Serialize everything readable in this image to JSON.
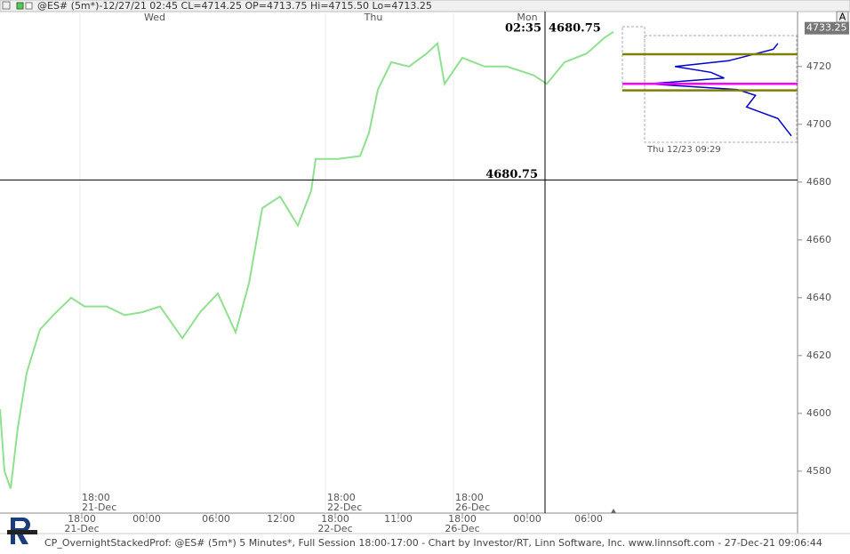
{
  "chart_data": {
    "type": "line",
    "header": "@ES# (5m*)-12/27/21 02:45 CL=4714.25 OP=4713.75 Hi=4715.50 Lo=4713.25",
    "footer": "CP_OvernightStackedProf: @ES# (5m*) 5 Minutes*, Full Session 18:00-17:00 - Chart by Investor/RT, Linn Software, Inc. www.linnsoft.com - 27-Dec-21 09:06:44",
    "corner_button": "A",
    "x": [
      0,
      5,
      12,
      20,
      30,
      45,
      60,
      80,
      95,
      120,
      140,
      160,
      180,
      205,
      225,
      245,
      265,
      280,
      295,
      315,
      335,
      350,
      355,
      380,
      405,
      415,
      425,
      440,
      460,
      480,
      492,
      500,
      520,
      545,
      570,
      600,
      615,
      635,
      660,
      680,
      690
    ],
    "series": [
      {
        "color": "#8fe08f",
        "values": [
          4601.5,
          4580,
          4574,
          4595,
          4614,
          4629,
          4634,
          4640,
          4637,
          4637,
          4634,
          4635,
          4637,
          4626,
          4635,
          4641.5,
          4628,
          4645,
          4671,
          4675,
          4665,
          4677,
          4688,
          4688,
          4689,
          4697,
          4712,
          4721.5,
          4720,
          4724.5,
          4728,
          4714,
          4723,
          4720,
          4720,
          4717,
          4714,
          4721.5,
          4724.5,
          4730,
          4732
        ]
      }
    ],
    "xlim": [
      0,
      897
    ],
    "ylim": [
      4565.5,
      4739
    ],
    "yticks": [
      4580,
      4600,
      4620,
      4640,
      4660,
      4680,
      4700,
      4720
    ],
    "xticks": [
      {
        "value": 92,
        "label": "18:00"
      },
      {
        "value": 165,
        "label": "00:00"
      },
      {
        "value": 243,
        "label": "06:00"
      },
      {
        "value": 316,
        "label": "12:00"
      },
      {
        "value": 377,
        "label": "18:00"
      },
      {
        "value": 448,
        "label": "11:00"
      },
      {
        "value": 520,
        "label": "18:00"
      },
      {
        "value": 593,
        "label": "00:00"
      },
      {
        "value": 662,
        "label": "06:00"
      }
    ],
    "xtick_dates": [
      "21-Dec",
      null,
      null,
      null,
      "22-Dec",
      null,
      "26-Dec",
      null,
      null
    ],
    "day_labels": [
      {
        "value": 174,
        "label": "Wed"
      },
      {
        "value": 420,
        "label": "Thu"
      },
      {
        "value": 593,
        "label": "Mon"
      }
    ],
    "session_markers": [
      {
        "value": 90,
        "label": "18:00",
        "date": "21-Dec"
      },
      {
        "value": 366,
        "label": "18:00",
        "date": "22-Dec"
      },
      {
        "value": 510,
        "label": "18:00",
        "date": "26-Dec"
      }
    ],
    "crosshair": {
      "x": 613,
      "y": 4680.75,
      "time_label": "02:35"
    },
    "last_price": 4733.25,
    "profile": {
      "label": "Thu 12/23 09:29",
      "value_area_high": 4724.25,
      "poc": 4714,
      "value_area_low": 4711.75,
      "prices": [
        4728,
        4726,
        4722,
        4720,
        4718,
        4716,
        4714,
        4712,
        4710,
        4706,
        4702,
        4700,
        4696
      ],
      "volumes": [
        22,
        27,
        77,
        137,
        97,
        82,
        167,
        67,
        47,
        57,
        22,
        17,
        7
      ]
    }
  }
}
